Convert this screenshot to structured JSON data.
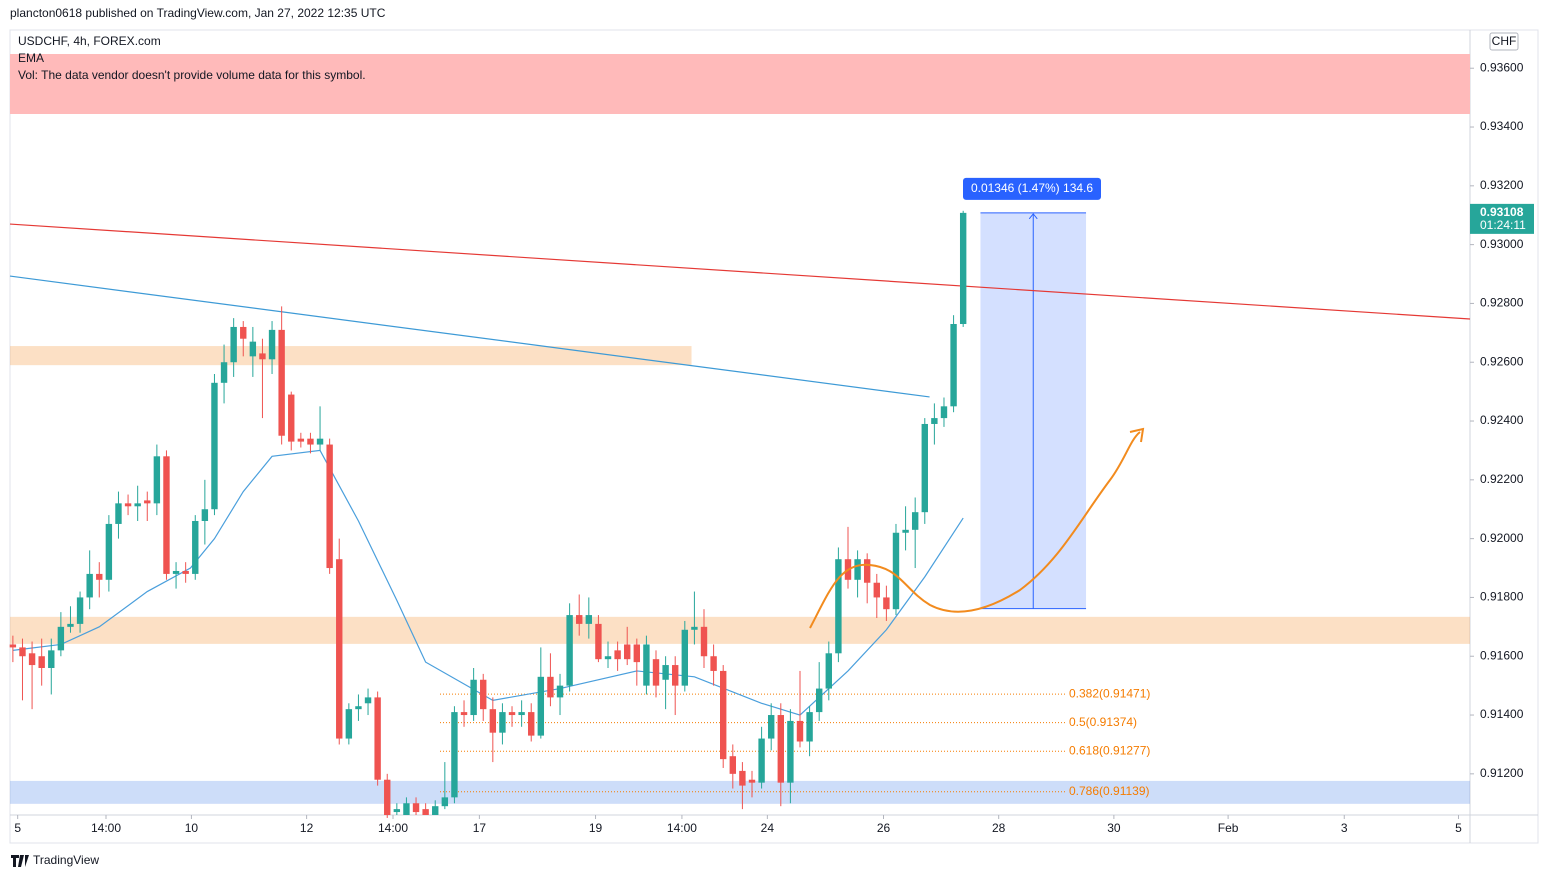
{
  "header": {
    "published": "plancton0618 published on TradingView.com, Jan 27, 2022 12:35 UTC",
    "brand": "TradingView"
  },
  "chart_data": {
    "type": "candlestick",
    "title": "USDCHF, 4h, FOREX.com",
    "indicator": "EMA",
    "notice": "Vol: The data vendor doesn't provide volume data for this symbol.",
    "currency": "CHF",
    "up_color": "#26a69a",
    "down_color": "#ef5350",
    "xlim": [
      -0.3,
      151.8
    ],
    "ylim": [
      0.9106,
      0.9373
    ],
    "yticks": [
      {
        "value": 0.936,
        "label": "0.93600"
      },
      {
        "value": 0.934,
        "label": "0.93400"
      },
      {
        "value": 0.932,
        "label": "0.93200"
      },
      {
        "value": 0.93,
        "label": "0.93000"
      },
      {
        "value": 0.928,
        "label": "0.92800"
      },
      {
        "value": 0.926,
        "label": "0.92600"
      },
      {
        "value": 0.924,
        "label": "0.92400"
      },
      {
        "value": 0.922,
        "label": "0.92200"
      },
      {
        "value": 0.92,
        "label": "0.92000"
      },
      {
        "value": 0.918,
        "label": "0.91800"
      },
      {
        "value": 0.916,
        "label": "0.91600"
      },
      {
        "value": 0.914,
        "label": "0.91400"
      },
      {
        "value": 0.912,
        "label": "0.91200"
      }
    ],
    "xticks": [
      {
        "value": 0.5,
        "label": "5"
      },
      {
        "value": 9.7,
        "label": "14:00"
      },
      {
        "value": 18.6,
        "label": "10"
      },
      {
        "value": 30.6,
        "label": "12"
      },
      {
        "value": 39.6,
        "label": "14:00"
      },
      {
        "value": 48.6,
        "label": "17"
      },
      {
        "value": 60.7,
        "label": "19"
      },
      {
        "value": 69.7,
        "label": "14:00"
      },
      {
        "value": 78.6,
        "label": "24"
      },
      {
        "value": 90.7,
        "label": "26"
      },
      {
        "value": 102.7,
        "label": "28"
      },
      {
        "value": 114.7,
        "label": "30"
      },
      {
        "value": 126.6,
        "label": "Feb"
      },
      {
        "value": 138.7,
        "label": "3"
      },
      {
        "value": 150.6,
        "label": "5"
      }
    ],
    "candles": [
      [
        0.9164,
        0.9167,
        0.9158,
        0.9163
      ],
      [
        0.9163,
        0.9166,
        0.9145,
        0.916
      ],
      [
        0.9161,
        0.9165,
        0.9142,
        0.9157
      ],
      [
        0.916,
        0.9166,
        0.915,
        0.9156
      ],
      [
        0.9156,
        0.9166,
        0.9147,
        0.9162
      ],
      [
        0.9162,
        0.9175,
        0.916,
        0.917
      ],
      [
        0.917,
        0.9177,
        0.9168,
        0.9171
      ],
      [
        0.9171,
        0.9182,
        0.9168,
        0.918
      ],
      [
        0.918,
        0.9196,
        0.9176,
        0.9188
      ],
      [
        0.9188,
        0.9192,
        0.918,
        0.9186
      ],
      [
        0.9186,
        0.9208,
        0.9182,
        0.9205
      ],
      [
        0.9205,
        0.9216,
        0.92,
        0.9212
      ],
      [
        0.9212,
        0.9215,
        0.9208,
        0.9211
      ],
      [
        0.9211,
        0.9218,
        0.9206,
        0.9212
      ],
      [
        0.9213,
        0.9216,
        0.9206,
        0.9212
      ],
      [
        0.9212,
        0.9232,
        0.9208,
        0.9228
      ],
      [
        0.9228,
        0.923,
        0.9186,
        0.9188
      ],
      [
        0.9188,
        0.9192,
        0.9183,
        0.9189
      ],
      [
        0.9189,
        0.9192,
        0.9185,
        0.9188
      ],
      [
        0.9188,
        0.9208,
        0.9186,
        0.9206
      ],
      [
        0.9206,
        0.922,
        0.9198,
        0.921
      ],
      [
        0.921,
        0.9256,
        0.9208,
        0.9253
      ],
      [
        0.9253,
        0.9266,
        0.9246,
        0.926
      ],
      [
        0.926,
        0.9275,
        0.9255,
        0.9272
      ],
      [
        0.9272,
        0.9274,
        0.9262,
        0.9268
      ],
      [
        0.9262,
        0.9272,
        0.9255,
        0.9267
      ],
      [
        0.9263,
        0.9268,
        0.9241,
        0.9261
      ],
      [
        0.9261,
        0.9274,
        0.9256,
        0.9271
      ],
      [
        0.9271,
        0.9279,
        0.9232,
        0.9235
      ],
      [
        0.9249,
        0.925,
        0.923,
        0.9233
      ],
      [
        0.9234,
        0.9236,
        0.9231,
        0.9233
      ],
      [
        0.9234,
        0.9236,
        0.9229,
        0.9232
      ],
      [
        0.9232,
        0.9245,
        0.923,
        0.9234
      ],
      [
        0.9232,
        0.9234,
        0.9188,
        0.919
      ],
      [
        0.9193,
        0.92,
        0.913,
        0.9132
      ],
      [
        0.9132,
        0.9144,
        0.913,
        0.9142
      ],
      [
        0.9142,
        0.9147,
        0.9138,
        0.9143
      ],
      [
        0.9144,
        0.9149,
        0.914,
        0.9146
      ],
      [
        0.9146,
        0.9148,
        0.9116,
        0.9118
      ],
      [
        0.9118,
        0.912,
        0.9105,
        0.9106
      ],
      [
        0.9107,
        0.911,
        0.9106,
        0.9108
      ],
      [
        0.9106,
        0.9112,
        0.9106,
        0.911
      ],
      [
        0.911,
        0.9112,
        0.9106,
        0.9107
      ],
      [
        0.9108,
        0.911,
        0.9106,
        0.9106
      ],
      [
        0.9106,
        0.9111,
        0.9106,
        0.9109
      ],
      [
        0.9109,
        0.9124,
        0.9108,
        0.9112
      ],
      [
        0.9112,
        0.9143,
        0.911,
        0.9141
      ],
      [
        0.9141,
        0.9145,
        0.9136,
        0.914
      ],
      [
        0.914,
        0.9156,
        0.9138,
        0.9152
      ],
      [
        0.9152,
        0.9154,
        0.9138,
        0.9142
      ],
      [
        0.9142,
        0.9146,
        0.9124,
        0.9134
      ],
      [
        0.9134,
        0.9144,
        0.913,
        0.9141
      ],
      [
        0.9141,
        0.9143,
        0.9136,
        0.914
      ],
      [
        0.914,
        0.9145,
        0.9136,
        0.9141
      ],
      [
        0.9141,
        0.9144,
        0.9131,
        0.9133
      ],
      [
        0.9133,
        0.9163,
        0.9132,
        0.9153
      ],
      [
        0.9153,
        0.9161,
        0.9143,
        0.9146
      ],
      [
        0.9146,
        0.9154,
        0.914,
        0.915
      ],
      [
        0.915,
        0.9178,
        0.9148,
        0.9174
      ],
      [
        0.9174,
        0.9181,
        0.9167,
        0.9171
      ],
      [
        0.9171,
        0.918,
        0.9166,
        0.9174
      ],
      [
        0.9171,
        0.9174,
        0.9158,
        0.9159
      ],
      [
        0.9159,
        0.9165,
        0.9156,
        0.916
      ],
      [
        0.9162,
        0.9165,
        0.9155,
        0.9159
      ],
      [
        0.9164,
        0.917,
        0.9157,
        0.9159
      ],
      [
        0.9164,
        0.9166,
        0.915,
        0.9158
      ],
      [
        0.915,
        0.9167,
        0.9147,
        0.9164
      ],
      [
        0.9159,
        0.9162,
        0.9146,
        0.915
      ],
      [
        0.9152,
        0.916,
        0.9142,
        0.9157
      ],
      [
        0.9157,
        0.916,
        0.914,
        0.915
      ],
      [
        0.915,
        0.9172,
        0.9148,
        0.9169
      ],
      [
        0.9169,
        0.9182,
        0.9164,
        0.917
      ],
      [
        0.917,
        0.9176,
        0.9156,
        0.916
      ],
      [
        0.916,
        0.9164,
        0.915,
        0.9155
      ],
      [
        0.9155,
        0.9157,
        0.9122,
        0.9125
      ],
      [
        0.9126,
        0.913,
        0.9115,
        0.912
      ],
      [
        0.9121,
        0.9124,
        0.9108,
        0.9116
      ],
      [
        0.9118,
        0.9121,
        0.9112,
        0.9117
      ],
      [
        0.9117,
        0.9136,
        0.9115,
        0.9132
      ],
      [
        0.9132,
        0.9144,
        0.9128,
        0.914
      ],
      [
        0.914,
        0.9144,
        0.9109,
        0.9117
      ],
      [
        0.9117,
        0.9142,
        0.911,
        0.9138
      ],
      [
        0.9138,
        0.9155,
        0.9129,
        0.9131
      ],
      [
        0.9131,
        0.9143,
        0.9126,
        0.9141
      ],
      [
        0.9141,
        0.9158,
        0.9138,
        0.9149
      ],
      [
        0.9149,
        0.9165,
        0.9145,
        0.9161
      ],
      [
        0.9161,
        0.9197,
        0.9158,
        0.9193
      ],
      [
        0.9193,
        0.9204,
        0.9183,
        0.9186
      ],
      [
        0.9186,
        0.9196,
        0.918,
        0.9193
      ],
      [
        0.9193,
        0.9195,
        0.9178,
        0.9185
      ],
      [
        0.9185,
        0.9188,
        0.9173,
        0.918
      ],
      [
        0.918,
        0.9184,
        0.9172,
        0.9176
      ],
      [
        0.9176,
        0.9205,
        0.9174,
        0.9202
      ],
      [
        0.9202,
        0.9211,
        0.9196,
        0.9203
      ],
      [
        0.9203,
        0.9214,
        0.919,
        0.9209
      ],
      [
        0.9209,
        0.9241,
        0.9205,
        0.9239
      ],
      [
        0.9239,
        0.9246,
        0.9232,
        0.9241
      ],
      [
        0.9241,
        0.9248,
        0.9238,
        0.9245
      ],
      [
        0.9245,
        0.9276,
        0.9243,
        0.9273
      ],
      [
        0.9273,
        0.93115,
        0.9272,
        0.93108
      ]
    ],
    "ema": {
      "name": "EMA",
      "color": "#4a9fdc",
      "x": [
        0,
        5,
        9,
        14,
        18.5,
        21,
        24,
        27,
        32,
        36,
        40,
        43,
        50,
        57,
        65,
        71,
        78,
        82,
        87,
        91,
        95,
        99
      ],
      "values": [
        0.9162,
        0.9164,
        0.917,
        0.9182,
        0.919,
        0.92,
        0.9216,
        0.9228,
        0.923,
        0.9206,
        0.9179,
        0.9158,
        0.9145,
        0.9149,
        0.9155,
        0.9153,
        0.9144,
        0.914,
        0.9155,
        0.9169,
        0.9187,
        0.9207
      ]
    },
    "trendlines": [
      {
        "color": "#e53935",
        "x": [
          -0.3,
          151.8
        ],
        "values": [
          0.9307,
          0.92747
        ]
      },
      {
        "color": "#3d9ad6",
        "x": [
          -0.3,
          95.5
        ],
        "values": [
          0.92893,
          0.92482
        ]
      }
    ],
    "zones": [
      {
        "color": "rgba(245,166,90,0.35)",
        "x": [
          -0.3,
          70.7
        ],
        "values": [
          0.92655,
          0.9259
        ]
      },
      {
        "color": "rgba(245,166,90,0.35)",
        "x": [
          -0.3,
          151.8
        ],
        "values": [
          0.91734,
          0.91642
        ]
      },
      {
        "color": "rgba(100,150,235,0.32)",
        "x": [
          -0.3,
          151.8
        ],
        "values": [
          0.91176,
          0.91098
        ]
      }
    ],
    "fib": [
      {
        "label": "0.382(0.91471)",
        "value": 0.91471
      },
      {
        "label": "0.5(0.91374)",
        "value": 0.91374
      },
      {
        "label": "0.618(0.91277)",
        "value": 0.91277
      },
      {
        "label": "0.786(0.91139)",
        "value": 0.91139
      }
    ],
    "measure": {
      "label": "0.01346 (1.47%) 134.6",
      "x": [
        100.8,
        111.8
      ],
      "values": [
        0.93108,
        0.91762
      ]
    },
    "last_price": {
      "value": 0.93108,
      "label": "0.93108",
      "countdown": "01:24:11"
    }
  }
}
